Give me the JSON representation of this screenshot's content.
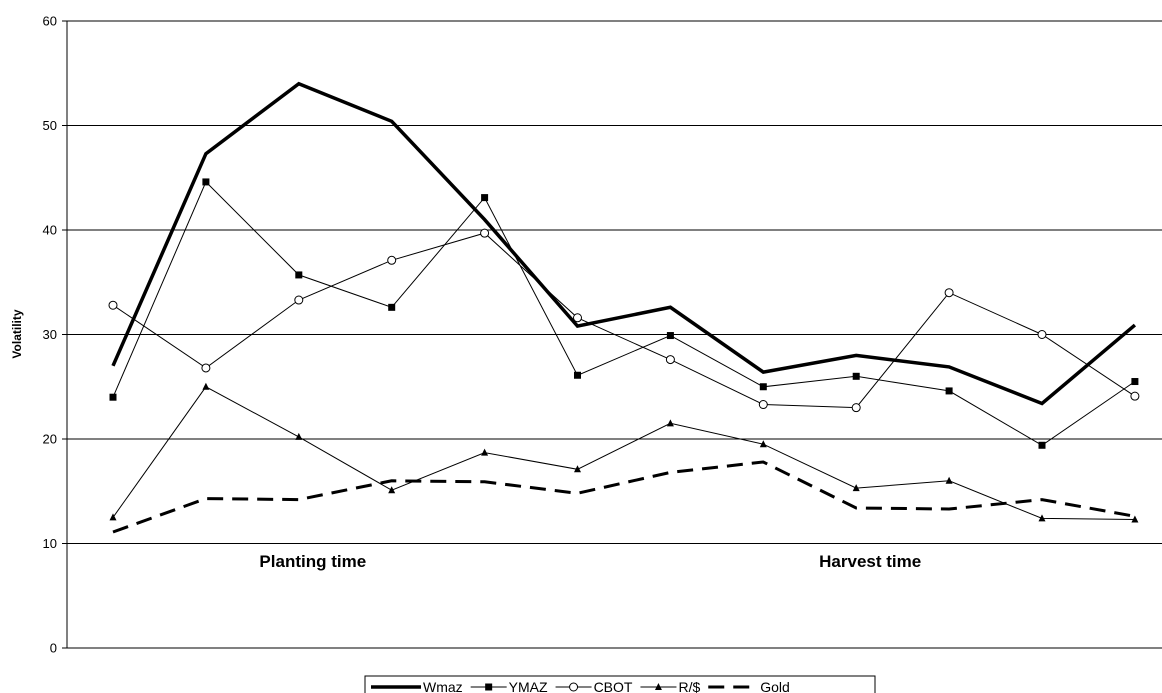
{
  "chart_data": {
    "type": "line",
    "title": "",
    "xlabel": "",
    "ylabel": "Volatility",
    "ylim": [
      0,
      60
    ],
    "yticks": [
      "0",
      "10",
      "20",
      "30",
      "40",
      "50",
      "60"
    ],
    "grid": "horizontal",
    "legend_position": "bottom",
    "annotations": [
      {
        "text": "Planting time",
        "at_x": 3
      },
      {
        "text": "Harvest time",
        "at_x": 9
      }
    ],
    "x": [
      1,
      2,
      3,
      4,
      5,
      6,
      7,
      8,
      9,
      10,
      11,
      12
    ],
    "series": [
      {
        "name": "Wmaz",
        "style": "thick-solid",
        "color": "#000000",
        "values": [
          27.0,
          47.3,
          54.0,
          50.4,
          41.0,
          30.8,
          32.6,
          26.4,
          28.0,
          26.9,
          23.4,
          30.9
        ]
      },
      {
        "name": "YMAZ",
        "style": "square-marker",
        "color": "#000000",
        "values": [
          24.0,
          44.6,
          35.7,
          32.6,
          43.1,
          26.1,
          29.9,
          25.0,
          26.0,
          24.6,
          19.4,
          25.5
        ]
      },
      {
        "name": "CBOT",
        "style": "circle-marker",
        "color": "#000000",
        "values": [
          32.8,
          26.8,
          33.3,
          37.1,
          39.7,
          31.6,
          27.6,
          23.3,
          23.0,
          34.0,
          30.0,
          24.1
        ]
      },
      {
        "name": "R/$",
        "style": "triangle-marker",
        "color": "#000000",
        "values": [
          12.5,
          25.0,
          20.2,
          15.1,
          18.7,
          17.1,
          21.5,
          19.5,
          15.3,
          16.0,
          12.4,
          12.3
        ]
      },
      {
        "name": "Gold",
        "style": "thick-dashed",
        "color": "#000000",
        "values": [
          11.1,
          14.3,
          14.2,
          16.0,
          15.9,
          14.8,
          16.8,
          17.8,
          13.4,
          13.3,
          14.2,
          12.6
        ]
      }
    ]
  }
}
